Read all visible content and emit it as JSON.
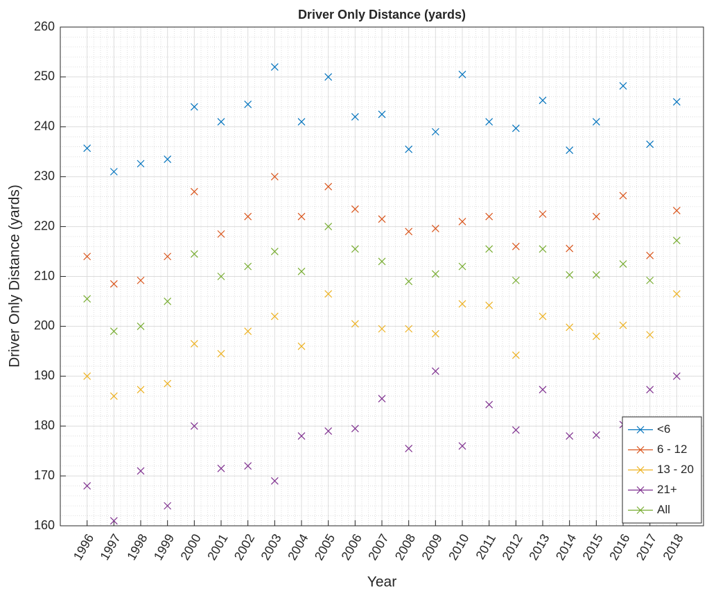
{
  "chart_data": {
    "type": "line",
    "title": "Driver Only Distance (yards)",
    "xlabel": "Year",
    "ylabel": "Driver Only Distance (yards)",
    "x": [
      1996,
      1997,
      1998,
      1999,
      2000,
      2001,
      2002,
      2003,
      2004,
      2005,
      2006,
      2007,
      2008,
      2009,
      2010,
      2011,
      2012,
      2013,
      2014,
      2015,
      2016,
      2017,
      2018
    ],
    "xlim": [
      1995,
      2019
    ],
    "xticks": [
      1996,
      1997,
      1998,
      1999,
      2000,
      2001,
      2002,
      2003,
      2004,
      2005,
      2006,
      2007,
      2008,
      2009,
      2010,
      2011,
      2012,
      2013,
      2014,
      2015,
      2016,
      2017,
      2018
    ],
    "ylim": [
      160,
      260
    ],
    "yticks": [
      160,
      170,
      180,
      190,
      200,
      210,
      220,
      230,
      240,
      250,
      260
    ],
    "grid": true,
    "minor_grid": true,
    "legend_position": "southeast",
    "marker": "x",
    "series": [
      {
        "name": "<6",
        "color": "#0072BD",
        "values": [
          235.7,
          231,
          232.6,
          233.5,
          244,
          241,
          244.5,
          252,
          241,
          250,
          242,
          242.5,
          235.5,
          239,
          250.5,
          241,
          239.7,
          245.3,
          235.3,
          241,
          248.2,
          236.5,
          245
        ]
      },
      {
        "name": "6 - 12",
        "color": "#D95319",
        "values": [
          214,
          208.5,
          209.2,
          214,
          227,
          218.5,
          222,
          230,
          222,
          228,
          223.5,
          221.5,
          219,
          219.6,
          221,
          222,
          216,
          222.5,
          215.6,
          222,
          226.2,
          214.2,
          223.2
        ]
      },
      {
        "name": "13 - 20",
        "color": "#EDB120",
        "values": [
          190,
          186,
          187.3,
          188.5,
          196.5,
          194.5,
          199,
          202,
          196,
          206.5,
          200.5,
          199.5,
          199.5,
          198.5,
          204.5,
          204.2,
          194.2,
          202,
          199.8,
          198,
          200.2,
          198.3,
          206.5
        ]
      },
      {
        "name": "21+",
        "color": "#7E2F8E",
        "values": [
          168,
          161,
          171,
          164,
          180,
          171.5,
          172,
          169,
          178,
          179,
          179.5,
          185.5,
          175.5,
          191,
          176,
          184.3,
          179.2,
          187.3,
          178,
          178.2,
          180.3,
          187.3,
          190
        ]
      },
      {
        "name": "All",
        "color": "#77AC30",
        "values": [
          205.5,
          199,
          200,
          205,
          214.5,
          210,
          212,
          215,
          211,
          220,
          215.5,
          213,
          209,
          210.5,
          212,
          215.5,
          209.2,
          215.5,
          210.3,
          210.3,
          212.5,
          209.2,
          217.2
        ]
      }
    ]
  }
}
